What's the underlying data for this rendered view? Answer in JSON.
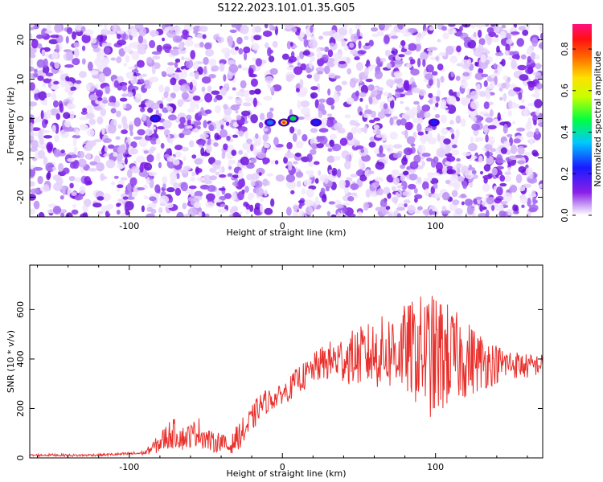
{
  "title": "S122.2023.101.01.35.G05",
  "colors": {
    "signal": "#e8302c",
    "spectrum_base": "#7a17e6"
  },
  "chart_data": [
    {
      "type": "heatmap",
      "name": "spectrogram",
      "xlabel": "Height of straight line (km)",
      "ylabel": "Frequency (Hz)",
      "xlim": [
        -165,
        170
      ],
      "ylim": [
        -25,
        24
      ],
      "xticks": [
        -100,
        0,
        100
      ],
      "yticks": [
        -20,
        -10,
        0,
        10,
        20
      ],
      "colorbar": {
        "label": "Normalized spectral amplitude",
        "range": [
          0.0,
          0.92
        ],
        "ticks": [
          0.0,
          0.2,
          0.4,
          0.6,
          0.8
        ],
        "colormap": "rainbow (white-violet to magenta)"
      },
      "peaks": [
        {
          "x": 1,
          "y": -1,
          "value": 0.75
        },
        {
          "x": 7,
          "y": 0,
          "value": 0.45
        },
        {
          "x": -8,
          "y": -1,
          "value": 0.35
        },
        {
          "x": 22,
          "y": -1,
          "value": 0.3
        },
        {
          "x": -83,
          "y": 0,
          "value": 0.3
        },
        {
          "x": 99,
          "y": -1,
          "value": 0.25
        }
      ],
      "grid": false,
      "legend": "colorbar-right"
    },
    {
      "type": "line",
      "name": "snr",
      "xlabel": "Height of straight line (km)",
      "ylabel": "SNR (10 * v/v)",
      "xlim": [
        -165,
        170
      ],
      "ylim": [
        0,
        780
      ],
      "xticks": [
        -100,
        0,
        100
      ],
      "yticks": [
        0,
        200,
        400,
        600
      ],
      "series": [
        {
          "color": "#e8302c",
          "x": [
            -165,
            -150,
            -135,
            -120,
            -105,
            -90,
            -80,
            -75,
            -70,
            -65,
            -60,
            -55,
            -50,
            -45,
            -40,
            -35,
            -30,
            -25,
            -20,
            -15,
            -10,
            -5,
            0,
            5,
            10,
            15,
            20,
            25,
            30,
            40,
            50,
            60,
            70,
            80,
            90,
            95,
            100,
            105,
            110,
            120,
            130,
            140,
            150,
            160,
            170
          ],
          "y": [
            10,
            12,
            10,
            12,
            15,
            20,
            60,
            90,
            100,
            80,
            90,
            110,
            80,
            60,
            70,
            40,
            80,
            110,
            150,
            210,
            230,
            240,
            260,
            280,
            320,
            330,
            360,
            380,
            390,
            400,
            410,
            420,
            430,
            440,
            430,
            420,
            400,
            420,
            410,
            400,
            390,
            380,
            380,
            370,
            380
          ],
          "amplitude": [
            5,
            5,
            5,
            5,
            6,
            8,
            40,
            60,
            60,
            50,
            50,
            60,
            50,
            40,
            40,
            30,
            50,
            60,
            60,
            50,
            50,
            40,
            40,
            50,
            50,
            60,
            60,
            70,
            80,
            100,
            120,
            140,
            160,
            180,
            230,
            250,
            260,
            240,
            200,
            160,
            120,
            80,
            60,
            50,
            40
          ]
        }
      ],
      "grid": false
    }
  ]
}
